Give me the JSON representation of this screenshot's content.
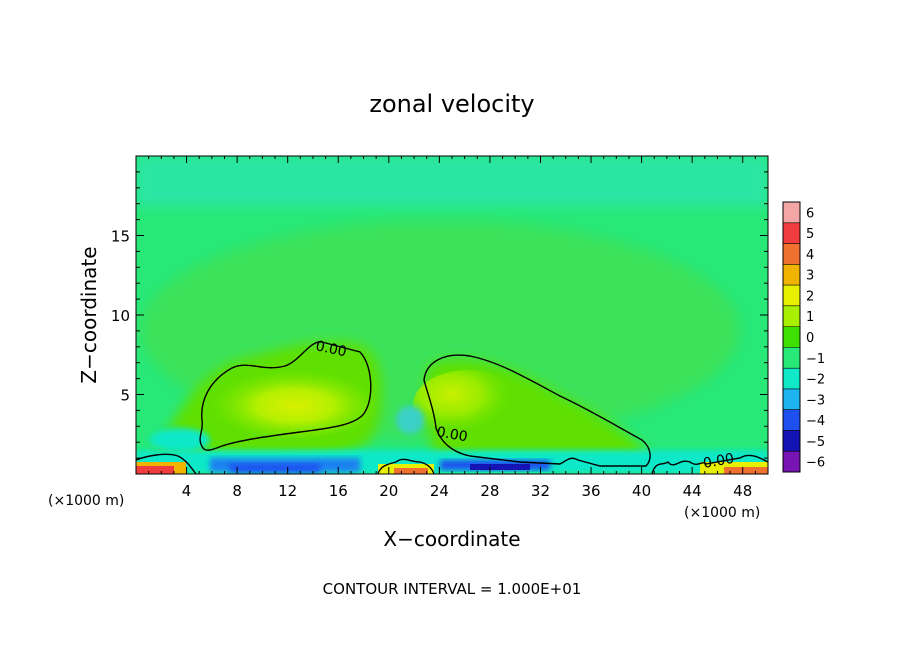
{
  "chart_data": {
    "type": "heatmap",
    "title": "zonal velocity",
    "xlabel": "X−coordinate",
    "ylabel": "Z−coordinate",
    "x_unit_left": "(×1000 m)",
    "x_unit_right": "(×1000 m)",
    "footer": "CONTOUR INTERVAL = 1.000E+01",
    "xlim": [
      0,
      50
    ],
    "ylim": [
      0,
      20
    ],
    "x_ticks": [
      4,
      8,
      12,
      16,
      20,
      24,
      28,
      32,
      36,
      40,
      44,
      48
    ],
    "x_tick_labels": [
      "4",
      "8",
      "12",
      "16",
      "20",
      "24",
      "28",
      "32",
      "36",
      "40",
      "44",
      "48"
    ],
    "y_ticks": [
      5,
      10,
      15
    ],
    "y_tick_labels": [
      "5",
      "10",
      "15"
    ],
    "colorbar": {
      "levels": [
        6,
        5,
        4,
        3,
        2,
        1,
        0,
        -1,
        -2,
        -3,
        -4,
        -5,
        -6
      ],
      "labels": [
        "6",
        "5",
        "4",
        "3",
        "2",
        "1",
        "0",
        "−1",
        "−2",
        "−3",
        "−4",
        "−5",
        "−6"
      ],
      "colors": [
        "#f4a6a6",
        "#f03c3c",
        "#f07030",
        "#f0b400",
        "#e6f000",
        "#a8f000",
        "#3ee000",
        "#28e878",
        "#10e8c8",
        "#1eb4f0",
        "#1e50f0",
        "#1414b4",
        "#7814b4"
      ]
    },
    "contour_label": "0.00",
    "contour_label_count": 3
  }
}
